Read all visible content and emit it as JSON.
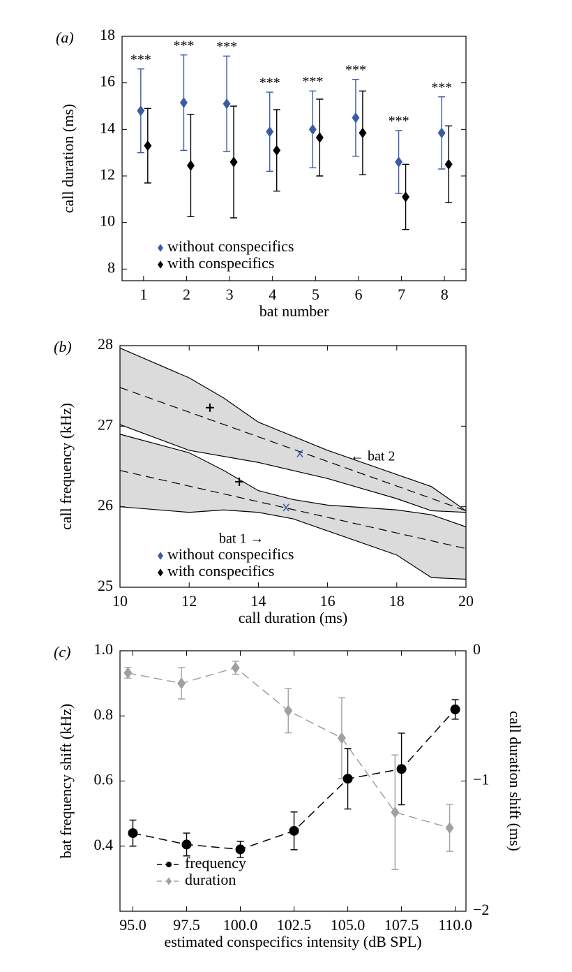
{
  "chart_data": [
    {
      "type": "errorbar",
      "panel_label": "(a)",
      "xlabel": "bat number",
      "ylabel": "call duration (ms)",
      "categories": [
        "1",
        "2",
        "3",
        "4",
        "5",
        "6",
        "7",
        "8"
      ],
      "ylim": [
        7.5,
        18
      ],
      "yticks": [
        8,
        10,
        12,
        14,
        16,
        18
      ],
      "legend": "lower left",
      "series": [
        {
          "name": "without conspecifics",
          "color": "#3b5ba5",
          "marker": "diamond",
          "values": [
            14.8,
            15.15,
            15.1,
            13.9,
            14.0,
            14.5,
            12.6,
            13.85
          ],
          "errors": [
            1.8,
            2.05,
            2.05,
            1.7,
            1.65,
            1.65,
            1.35,
            1.55
          ],
          "annotations": [
            "***",
            "***",
            "***",
            "***",
            "***",
            "***",
            "***",
            "***"
          ]
        },
        {
          "name": "with conspecifics",
          "color": "#000000",
          "marker": "diamond",
          "values": [
            13.3,
            12.45,
            12.6,
            13.1,
            13.65,
            13.85,
            11.1,
            12.5
          ],
          "errors": [
            1.6,
            2.2,
            2.4,
            1.75,
            1.65,
            1.8,
            1.4,
            1.65
          ]
        }
      ]
    },
    {
      "type": "band",
      "panel_label": "(b)",
      "xlabel": "call duration (ms)",
      "ylabel": "call frequency (kHz)",
      "xlim": [
        10,
        20
      ],
      "xticks": [
        10,
        12,
        14,
        16,
        18,
        20
      ],
      "ylim": [
        25,
        28
      ],
      "yticks": [
        25,
        26,
        27,
        28
      ],
      "band_color": "#d9d9d9",
      "legend": "lower left",
      "bands": [
        {
          "x_upper": [
            10,
            12,
            13,
            14,
            16,
            18,
            19,
            20
          ],
          "upper": [
            27.97,
            27.6,
            27.35,
            27.05,
            26.7,
            26.4,
            26.25,
            25.95
          ],
          "x_lower": [
            10,
            12,
            14,
            16,
            18,
            19,
            20
          ],
          "lower": [
            27.02,
            26.7,
            26.55,
            26.35,
            26.1,
            25.95,
            25.93
          ],
          "fit_x": [
            10,
            20
          ],
          "fit": [
            27.48,
            25.95
          ]
        },
        {
          "x_upper": [
            10,
            12,
            13,
            14,
            15,
            16,
            18,
            19,
            20
          ],
          "upper": [
            26.9,
            26.67,
            26.45,
            26.2,
            26.09,
            26.02,
            25.96,
            25.9,
            25.75
          ],
          "x_lower": [
            10,
            12,
            13,
            14,
            15,
            16,
            17,
            18,
            19,
            20
          ],
          "lower": [
            26.0,
            25.93,
            25.96,
            25.93,
            25.85,
            25.7,
            25.55,
            25.4,
            25.12,
            25.1
          ],
          "fit_x": [
            10,
            20
          ],
          "fit": [
            26.45,
            25.48
          ]
        }
      ],
      "annotations": [
        "← bat 2",
        "bat 1 →"
      ],
      "series": [
        {
          "name": "without conspecifics",
          "color": "#3b5ba5",
          "marker": "x",
          "x": [
            15.2,
            14.8
          ],
          "values": [
            26.66,
            25.99
          ]
        },
        {
          "name": "with conspecifics",
          "color": "#000000",
          "marker": "+",
          "x": [
            12.6,
            13.45
          ],
          "values": [
            27.23,
            26.31
          ]
        }
      ]
    },
    {
      "type": "line",
      "panel_label": "(c)",
      "xlabel": "estimated conspecifics intensity (dB SPL)",
      "ylabel": "bat frequency shift (kHz)",
      "y2label": "call duration shift (ms)",
      "xlim": [
        94.4,
        110.5
      ],
      "xticks": [
        {
          "value": 95,
          "label": "95.0"
        },
        {
          "value": 97.5,
          "label": "97.5"
        },
        {
          "value": 100,
          "label": "100.0"
        },
        {
          "value": 102.5,
          "label": "102.5"
        },
        {
          "value": 105,
          "label": "105.0"
        },
        {
          "value": 107.5,
          "label": "107.5"
        },
        {
          "value": 110,
          "label": "110.0"
        }
      ],
      "ylim": [
        0.2,
        1.0
      ],
      "yticks": [
        0.4,
        0.6,
        0.8,
        {
          "value": 1,
          "label": "1.0"
        }
      ],
      "y2lim": [
        -2,
        0
      ],
      "y2ticks": [
        {
          "value": -2,
          "label": "−2"
        },
        {
          "value": -1,
          "label": "−1"
        },
        0
      ],
      "legend": "lower left",
      "series": [
        {
          "name": "frequency",
          "color": "#000000",
          "marker": "circle",
          "dashed": true,
          "x": [
            95,
            97.5,
            100,
            102.5,
            105,
            107.5,
            110
          ],
          "values": [
            0.44,
            0.405,
            0.39,
            0.447,
            0.607,
            0.637,
            0.82
          ],
          "errors": [
            0.04,
            0.035,
            0.025,
            0.058,
            0.093,
            0.11,
            0.03
          ]
        },
        {
          "name": "duration",
          "color": "#a0a0a0",
          "marker": "diamond",
          "dashed": true,
          "axis": "y2",
          "x": [
            94.77,
            97.26,
            99.78,
            102.23,
            104.72,
            107.2,
            109.74
          ],
          "values": [
            -0.17,
            -0.25,
            -0.13,
            -0.46,
            -0.67,
            -1.24,
            -1.36
          ],
          "errors": [
            0.04,
            0.12,
            0.05,
            0.17,
            0.31,
            0.44,
            0.18
          ]
        }
      ]
    }
  ]
}
